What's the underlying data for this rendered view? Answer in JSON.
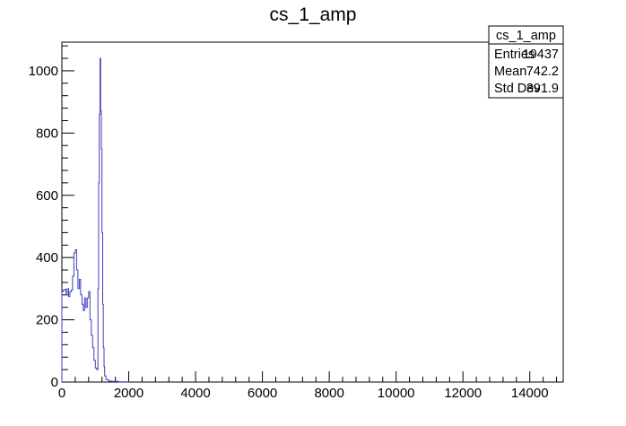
{
  "chart_data": {
    "type": "histogram",
    "title": "cs_1_amp",
    "xlabel": "",
    "ylabel": "",
    "xlim": [
      0,
      15000
    ],
    "ylim": [
      0,
      1092
    ],
    "grid": false,
    "line_color": "#3f3fbf",
    "x_ticks": [
      {
        "value": 0,
        "label": "0"
      },
      {
        "value": 2000,
        "label": "2000"
      },
      {
        "value": 4000,
        "label": "4000"
      },
      {
        "value": 6000,
        "label": "6000"
      },
      {
        "value": 8000,
        "label": "8000"
      },
      {
        "value": 10000,
        "label": "10000"
      },
      {
        "value": 12000,
        "label": "12000"
      },
      {
        "value": 14000,
        "label": "14000"
      }
    ],
    "y_ticks": [
      {
        "value": 0,
        "label": "0"
      },
      {
        "value": 200,
        "label": "200"
      },
      {
        "value": 400,
        "label": "400"
      },
      {
        "value": 600,
        "label": "600"
      },
      {
        "value": 800,
        "label": "800"
      },
      {
        "value": 1000,
        "label": "1000"
      }
    ],
    "series": [
      {
        "points": [
          [
            0,
            290
          ],
          [
            40,
            295
          ],
          [
            80,
            298
          ],
          [
            120,
            285
          ],
          [
            160,
            300
          ],
          [
            200,
            275
          ],
          [
            240,
            290
          ],
          [
            280,
            295
          ],
          [
            320,
            340
          ],
          [
            360,
            415
          ],
          [
            400,
            425
          ],
          [
            440,
            360
          ],
          [
            480,
            300
          ],
          [
            520,
            330
          ],
          [
            560,
            280
          ],
          [
            600,
            250
          ],
          [
            640,
            230
          ],
          [
            680,
            270
          ],
          [
            720,
            240
          ],
          [
            760,
            270
          ],
          [
            800,
            290
          ],
          [
            840,
            200
          ],
          [
            880,
            150
          ],
          [
            920,
            110
          ],
          [
            960,
            70
          ],
          [
            1000,
            45
          ],
          [
            1040,
            40
          ],
          [
            1080,
            300
          ],
          [
            1100,
            640
          ],
          [
            1120,
            860
          ],
          [
            1140,
            1040
          ],
          [
            1160,
            870
          ],
          [
            1180,
            750
          ],
          [
            1200,
            480
          ],
          [
            1220,
            250
          ],
          [
            1240,
            110
          ],
          [
            1260,
            50
          ],
          [
            1280,
            20
          ],
          [
            1320,
            8
          ],
          [
            1400,
            3
          ],
          [
            1500,
            2
          ],
          [
            1700,
            1
          ],
          [
            2000,
            0
          ]
        ]
      }
    ]
  },
  "stats_box": {
    "name": "cs_1_amp",
    "rows": [
      {
        "label": "Entries",
        "value": "19437"
      },
      {
        "label": "Mean",
        "value": "742.2"
      },
      {
        "label": "Std Dev",
        "value": "391.9"
      }
    ]
  }
}
